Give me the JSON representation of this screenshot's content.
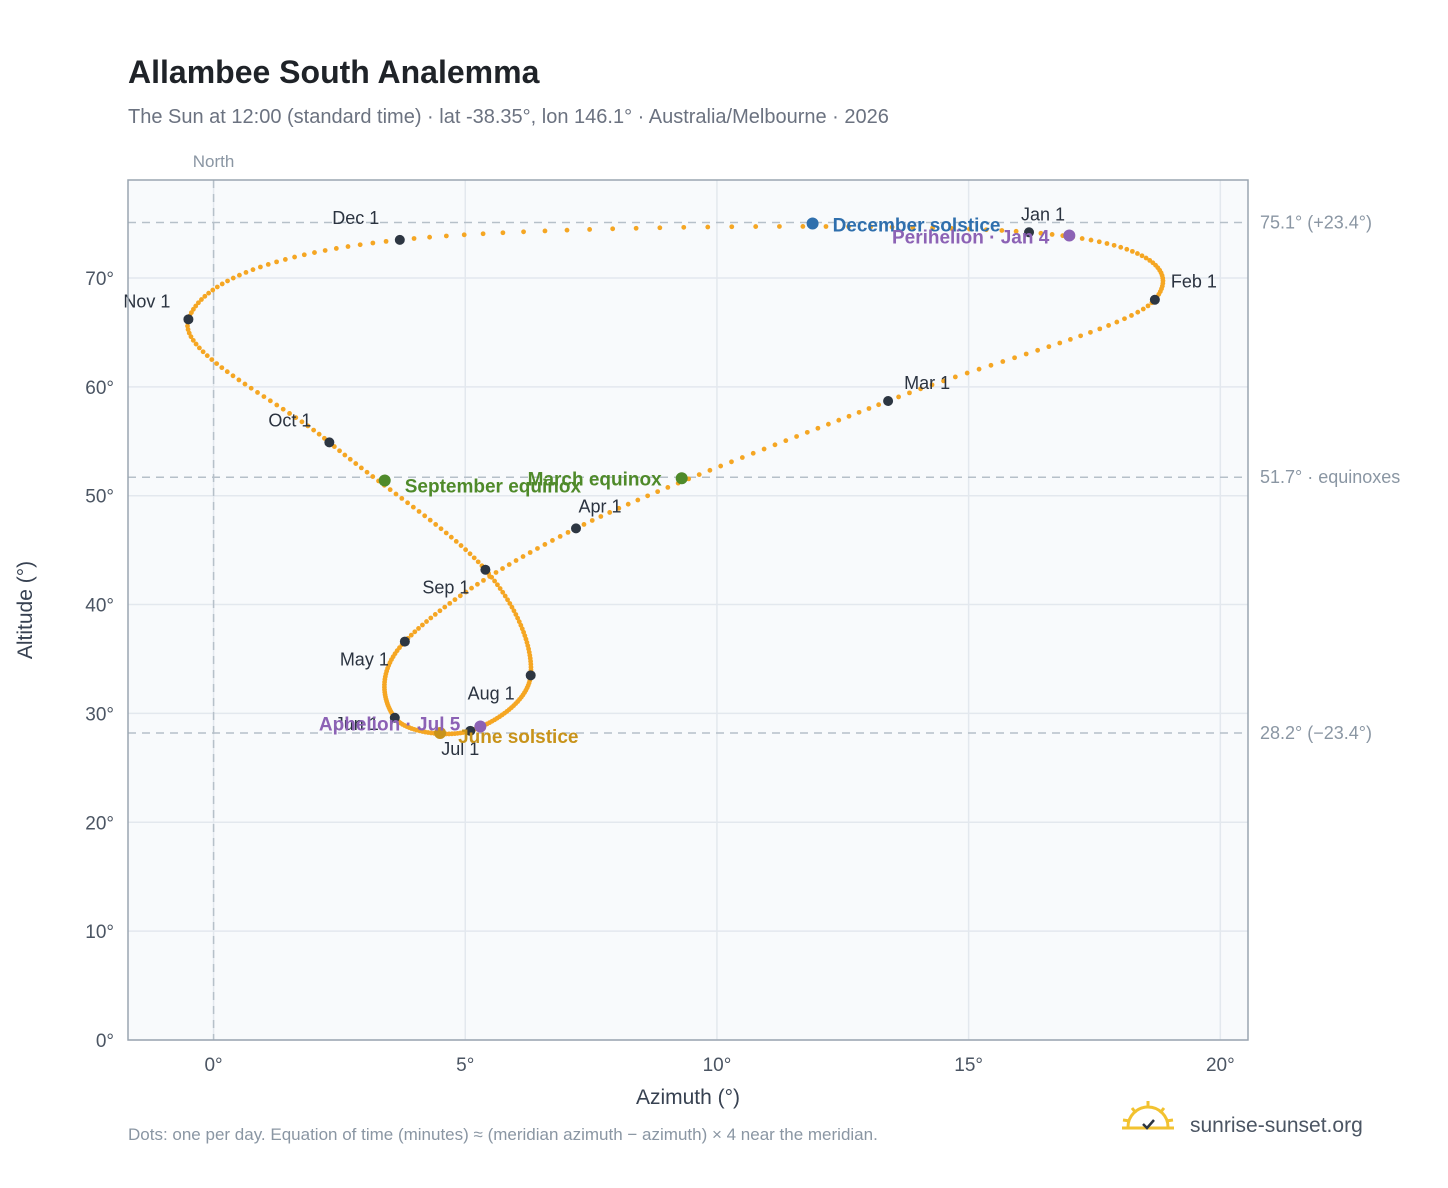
{
  "header": {
    "title": "Allambee South Analemma",
    "subtitle": "The Sun at 12:00 (standard time) · lat -38.35°, lon 146.1° · Australia/Melbourne · 2026"
  },
  "footer": {
    "note": "Dots: one per day. Equation of time (minutes) ≈ (meridian azimuth − azimuth) × 4 near the meridian.",
    "brand": "sunrise-sunset.org"
  },
  "colors": {
    "curve": "#f5a623",
    "month_marker": "#2d3642",
    "solstice_dec": "#2f6fad",
    "solstice_jun": "#c8931a",
    "equinox": "#4f8a2a",
    "apsis": "#8c62b5",
    "grid": "#e3e8ee",
    "plot_bg": "#f8fafc",
    "frame": "#9aa5b1"
  },
  "chart_data": {
    "type": "scatter",
    "xlabel": "Azimuth (°)",
    "ylabel": "Altitude (°)",
    "xlim": [
      -1.7,
      20.55
    ],
    "ylim": [
      0,
      79
    ],
    "x_ticks": [
      0,
      5,
      10,
      15,
      20
    ],
    "x_tick_labels": [
      "0°",
      "5°",
      "10°",
      "15°",
      "20°"
    ],
    "y_ticks": [
      0,
      10,
      20,
      30,
      40,
      50,
      60,
      70
    ],
    "y_tick_labels": [
      "0°",
      "10°",
      "20°",
      "30°",
      "40°",
      "50°",
      "60°",
      "70°"
    ],
    "grid": true,
    "meridian": {
      "x": 0,
      "label": "North"
    },
    "reference_lines": [
      {
        "y": 75.1,
        "label": "75.1° (+23.4°)"
      },
      {
        "y": 51.7,
        "label": "51.7° · equinoxes"
      },
      {
        "y": 28.2,
        "label": "28.2° (−23.4°)"
      }
    ],
    "month_markers": [
      {
        "label": "Jan 1",
        "x": 16.2,
        "y": 74.2
      },
      {
        "label": "Feb 1",
        "x": 18.7,
        "y": 68.0
      },
      {
        "label": "Mar 1",
        "x": 13.4,
        "y": 58.7
      },
      {
        "label": "Apr 1",
        "x": 7.2,
        "y": 47.0
      },
      {
        "label": "May 1",
        "x": 3.8,
        "y": 36.6
      },
      {
        "label": "Jun 1",
        "x": 3.6,
        "y": 29.6
      },
      {
        "label": "Jul 1",
        "x": 5.1,
        "y": 28.4
      },
      {
        "label": "Aug 1",
        "x": 6.3,
        "y": 33.5
      },
      {
        "label": "Sep 1",
        "x": 5.4,
        "y": 43.2
      },
      {
        "label": "Oct 1",
        "x": 2.3,
        "y": 54.9
      },
      {
        "label": "Nov 1",
        "x": -0.5,
        "y": 66.2
      },
      {
        "label": "Dec 1",
        "x": 3.7,
        "y": 73.5
      }
    ],
    "events": [
      {
        "label": "December solstice",
        "x": 11.9,
        "y": 75.0,
        "color": "#2f6fad"
      },
      {
        "label": "Perihelion · Jan 4",
        "x": 17.0,
        "y": 73.9,
        "color": "#8c62b5"
      },
      {
        "label": "March equinox",
        "x": 9.3,
        "y": 51.6,
        "color": "#4f8a2a"
      },
      {
        "label": "September equinox",
        "x": 3.4,
        "y": 51.4,
        "color": "#4f8a2a"
      },
      {
        "label": "June solstice",
        "x": 4.5,
        "y": 28.2,
        "color": "#c8931a"
      },
      {
        "label": "Aphelion · Jul 5",
        "x": 5.3,
        "y": 28.8,
        "color": "#8c62b5"
      }
    ]
  }
}
